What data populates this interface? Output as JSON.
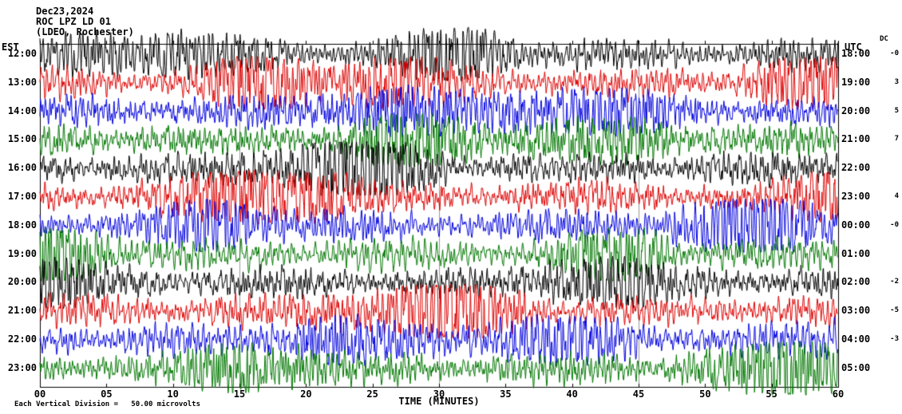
{
  "header": {
    "date": "Dec23,2024",
    "station": "ROC LPZ LD 01",
    "location": "(LDEO, Rochester)"
  },
  "axes": {
    "left_label": "EST",
    "right_label": "UTC",
    "dc_label": "DC",
    "x_label": "TIME (MINUTES)",
    "x_ticks": [
      "00",
      "05",
      "10",
      "15",
      "20",
      "25",
      "30",
      "35",
      "40",
      "45",
      "50",
      "55",
      "60"
    ]
  },
  "footer": {
    "scale_note": "Each Vertical Division =   50.00 microvolts"
  },
  "colors": {
    "black": "#000000",
    "red": "#dd0000",
    "blue": "#0000dd",
    "green": "#007700",
    "grid": "#999999"
  },
  "chart_data": {
    "type": "line",
    "subtype": "helicorder-seismogram",
    "title": "ROC LPZ LD 01 (LDEO, Rochester) Dec23,2024",
    "xlabel": "TIME (MINUTES)",
    "x_range_minutes": [
      0,
      60
    ],
    "x_tick_interval_minutes": 5,
    "grid_lines_minutes": [
      15,
      30,
      45
    ],
    "minutes_per_row": 60,
    "vertical_division_microvolts": 50.0,
    "left_time_zone": "EST",
    "right_time_zone": "UTC",
    "waveform_note": "continuous high-amplitude seismic noise on every trace",
    "rows": [
      {
        "est": "12:00",
        "utc": "18:00",
        "dc": "-0",
        "color": "#000000"
      },
      {
        "est": "13:00",
        "utc": "19:00",
        "dc": "3",
        "color": "#dd0000"
      },
      {
        "est": "14:00",
        "utc": "20:00",
        "dc": "5",
        "color": "#0000dd"
      },
      {
        "est": "15:00",
        "utc": "21:00",
        "dc": "7",
        "color": "#007700"
      },
      {
        "est": "16:00",
        "utc": "22:00",
        "dc": "",
        "color": "#000000"
      },
      {
        "est": "17:00",
        "utc": "23:00",
        "dc": "4",
        "color": "#dd0000"
      },
      {
        "est": "18:00",
        "utc": "00:00",
        "dc": "-0",
        "color": "#0000dd"
      },
      {
        "est": "19:00",
        "utc": "01:00",
        "dc": "",
        "color": "#007700"
      },
      {
        "est": "20:00",
        "utc": "02:00",
        "dc": "-2",
        "color": "#000000"
      },
      {
        "est": "21:00",
        "utc": "03:00",
        "dc": "-5",
        "color": "#dd0000"
      },
      {
        "est": "22:00",
        "utc": "04:00",
        "dc": "-3",
        "color": "#0000dd"
      },
      {
        "est": "23:00",
        "utc": "05:00",
        "dc": "",
        "color": "#007700"
      }
    ]
  }
}
